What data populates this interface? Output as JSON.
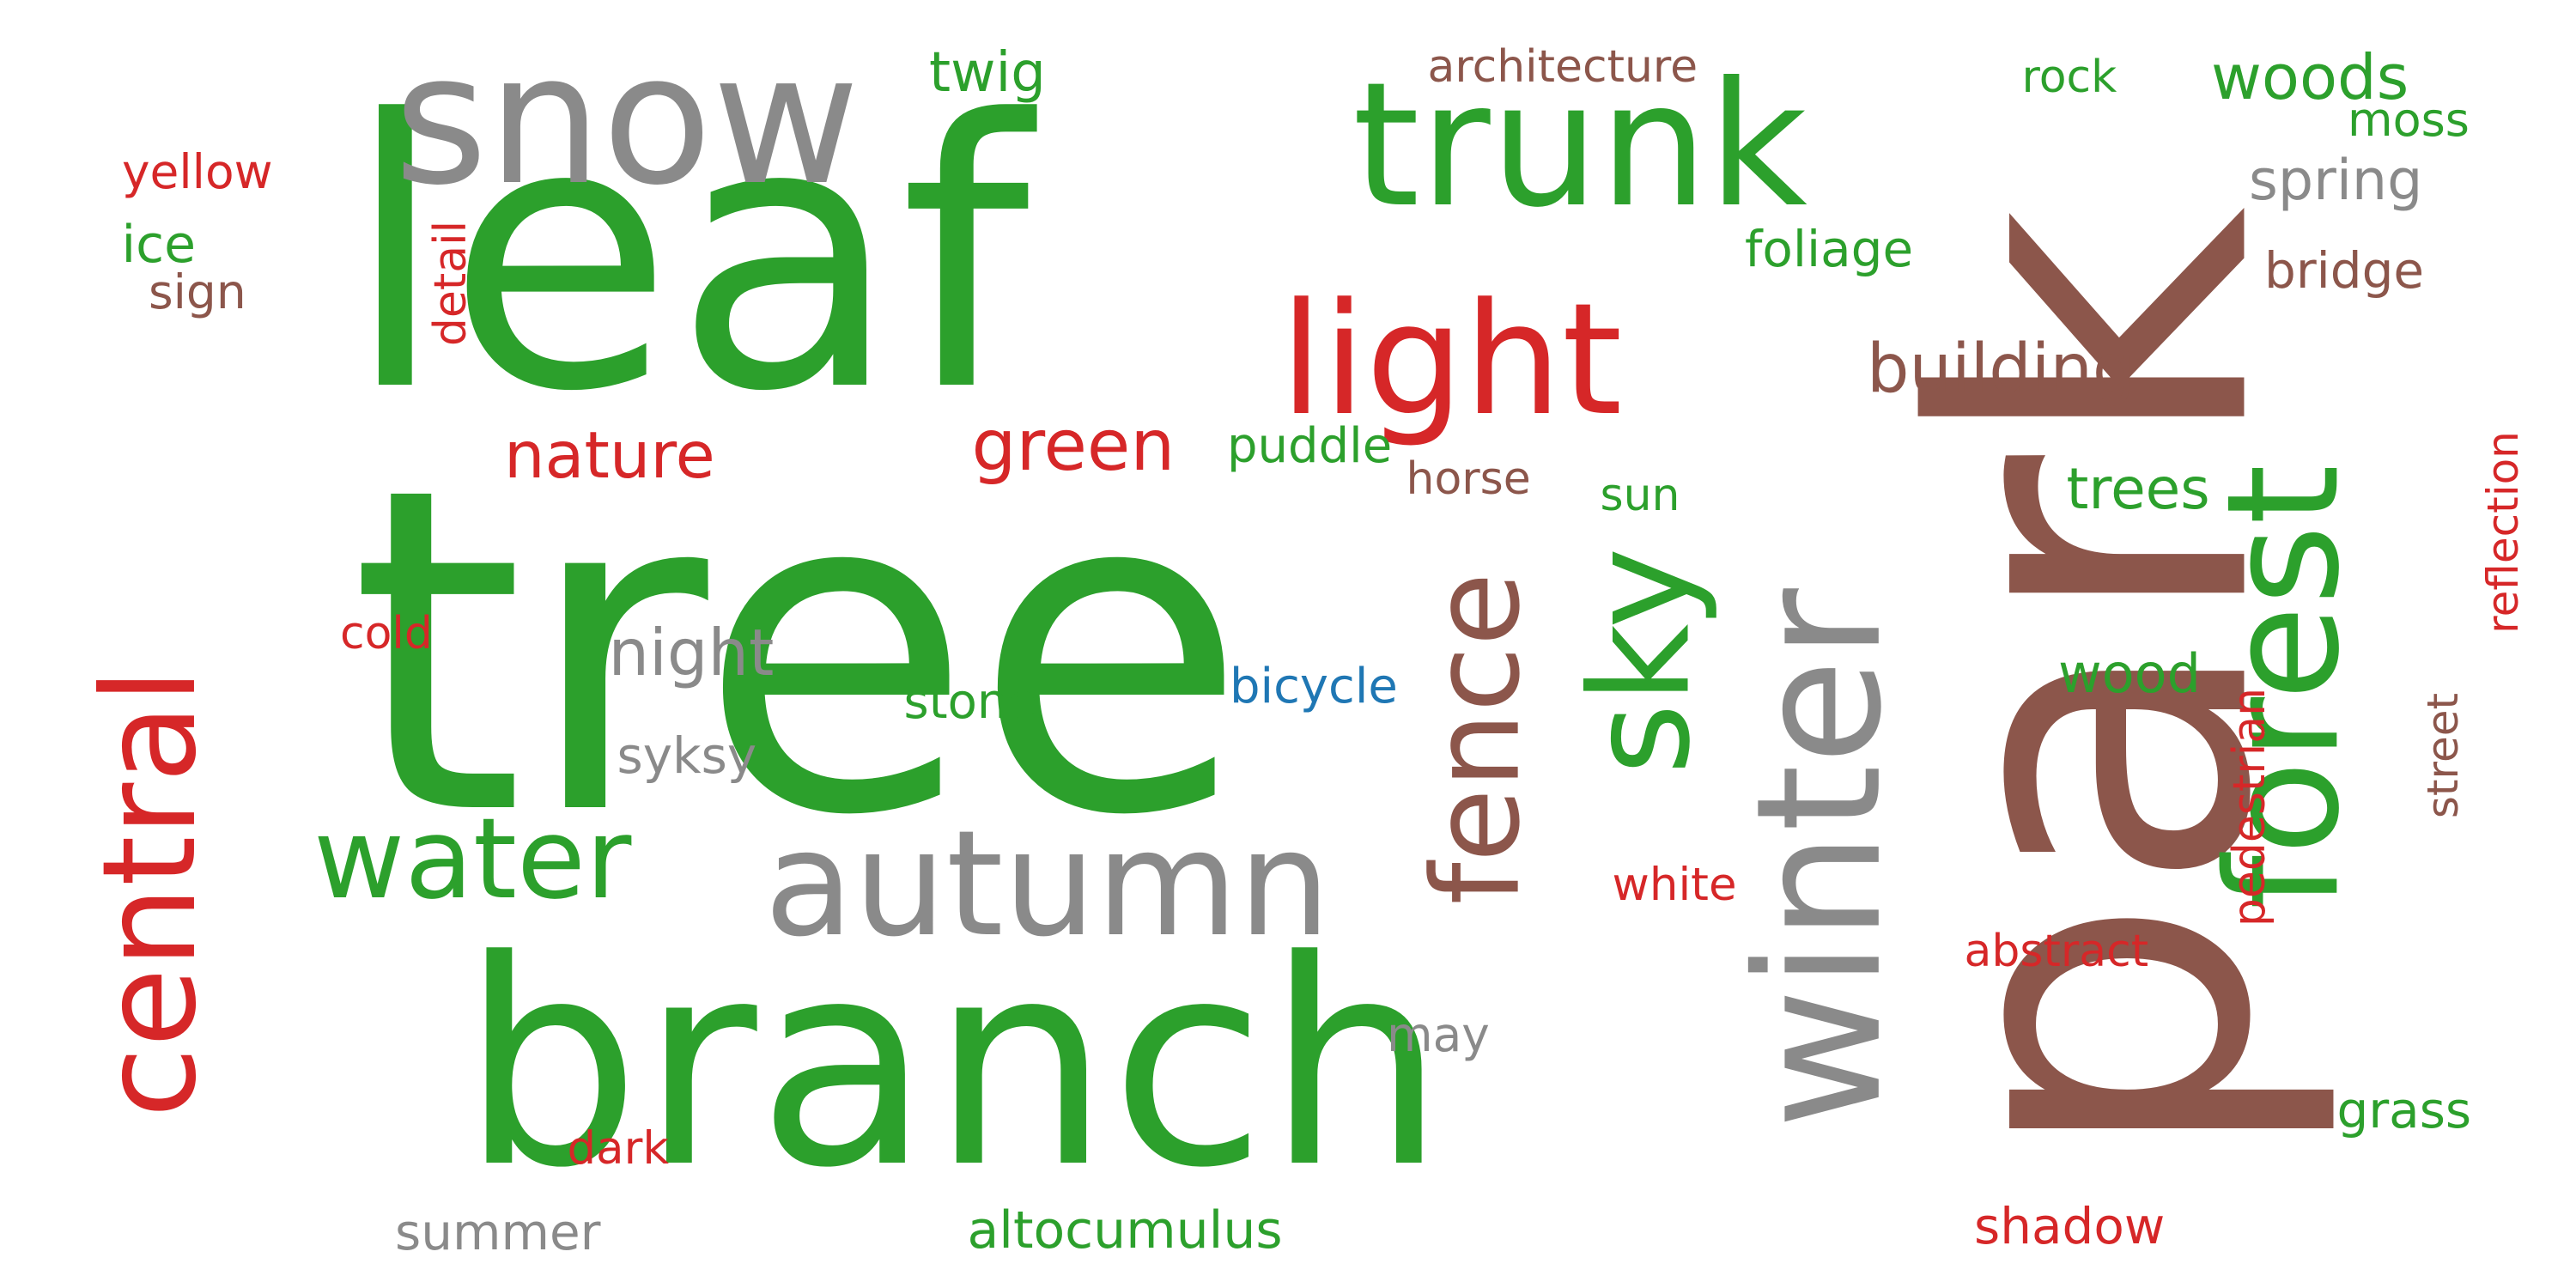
{
  "colors": {
    "green": "#2ca02c",
    "brown": "#8c564b",
    "red": "#d62728",
    "gray": "#8a8a8a",
    "blue": "#1f77b4"
  },
  "words": [
    {
      "text": "tree",
      "color": "green"
    },
    {
      "text": "leaf",
      "color": "green"
    },
    {
      "text": "branch",
      "color": "green"
    },
    {
      "text": "park",
      "color": "brown"
    },
    {
      "text": "trunk",
      "color": "green"
    },
    {
      "text": "snow",
      "color": "gray"
    },
    {
      "text": "winter",
      "color": "gray"
    },
    {
      "text": "forest",
      "color": "green"
    },
    {
      "text": "autumn",
      "color": "gray"
    },
    {
      "text": "light",
      "color": "red"
    },
    {
      "text": "sky",
      "color": "green"
    },
    {
      "text": "water",
      "color": "green"
    },
    {
      "text": "central",
      "color": "red"
    },
    {
      "text": "fence",
      "color": "brown"
    },
    {
      "text": "building",
      "color": "brown"
    },
    {
      "text": "green",
      "color": "red"
    },
    {
      "text": "nature",
      "color": "red"
    },
    {
      "text": "night",
      "color": "gray"
    },
    {
      "text": "woods",
      "color": "green"
    },
    {
      "text": "trees",
      "color": "green"
    },
    {
      "text": "twig",
      "color": "green"
    },
    {
      "text": "spring",
      "color": "gray"
    },
    {
      "text": "architecture",
      "color": "brown"
    },
    {
      "text": "foliage",
      "color": "green"
    },
    {
      "text": "bridge",
      "color": "brown"
    },
    {
      "text": "puddle",
      "color": "green"
    },
    {
      "text": "wood",
      "color": "green"
    },
    {
      "text": "yellow",
      "color": "red"
    },
    {
      "text": "ice",
      "color": "green"
    },
    {
      "text": "sign",
      "color": "brown"
    },
    {
      "text": "detail",
      "color": "red"
    },
    {
      "text": "rock",
      "color": "green"
    },
    {
      "text": "moss",
      "color": "green"
    },
    {
      "text": "reflection",
      "color": "red"
    },
    {
      "text": "horse",
      "color": "brown"
    },
    {
      "text": "sun",
      "color": "green"
    },
    {
      "text": "cold",
      "color": "red"
    },
    {
      "text": "bicycle",
      "color": "blue"
    },
    {
      "text": "stone",
      "color": "green"
    },
    {
      "text": "syksy",
      "color": "gray"
    },
    {
      "text": "white",
      "color": "red"
    },
    {
      "text": "pedestrian",
      "color": "red"
    },
    {
      "text": "street",
      "color": "brown"
    },
    {
      "text": "abstract",
      "color": "red"
    },
    {
      "text": "grass",
      "color": "green"
    },
    {
      "text": "may",
      "color": "gray"
    },
    {
      "text": "dark",
      "color": "red"
    },
    {
      "text": "summer",
      "color": "gray"
    },
    {
      "text": "altocumulus",
      "color": "green"
    },
    {
      "text": "shadow",
      "color": "red"
    }
  ]
}
